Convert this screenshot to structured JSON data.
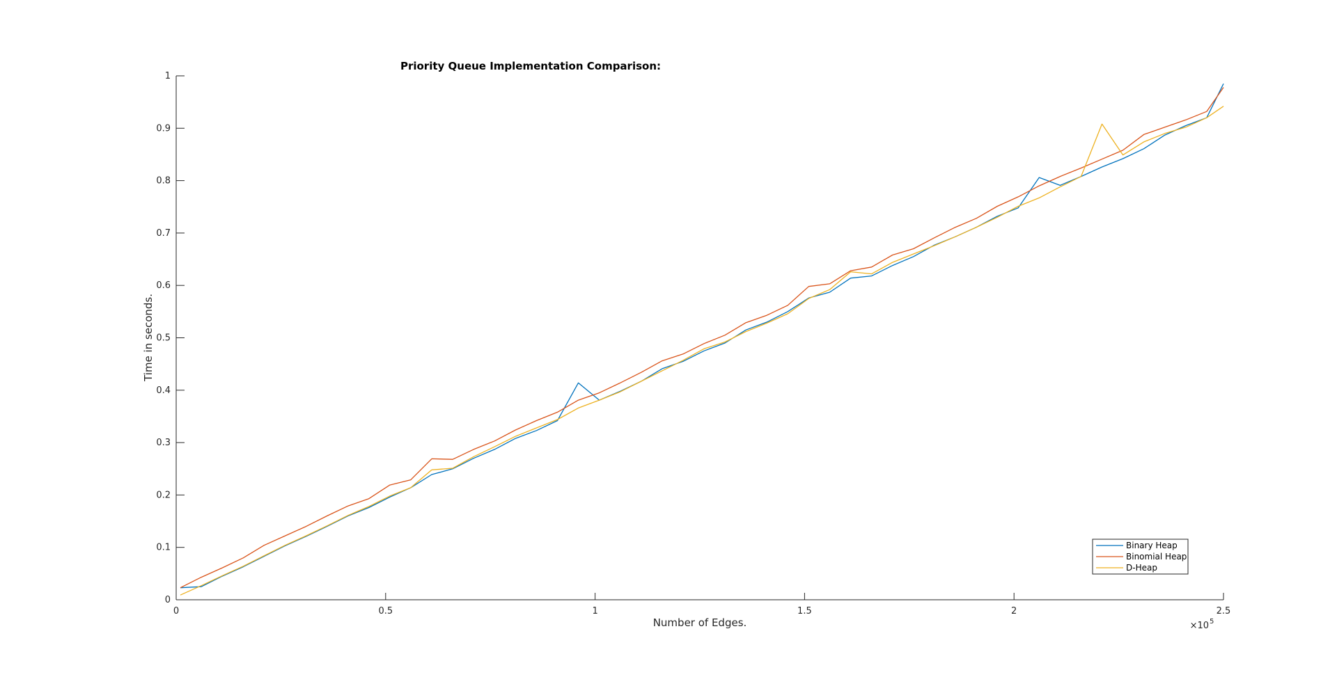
{
  "chart_data": {
    "type": "line",
    "title": "Priority Queue Implementation Comparison:",
    "xlabel": "Number of Edges.",
    "ylabel": "Time in seconds.",
    "x_exponent_label": "×10",
    "x_exponent_power": "5",
    "xlim": [
      0,
      2.5
    ],
    "ylim": [
      0,
      1
    ],
    "x_ticks": [
      "0",
      "0.5",
      "1",
      "1.5",
      "2",
      "2.5"
    ],
    "y_ticks": [
      "0",
      "0.1",
      "0.2",
      "0.3",
      "0.4",
      "0.5",
      "0.6",
      "0.7",
      "0.8",
      "0.9",
      "1"
    ],
    "grid": false,
    "legend_position": "bottom-right",
    "x": [
      0.01,
      0.06,
      0.11,
      0.16,
      0.21,
      0.26,
      0.31,
      0.36,
      0.41,
      0.46,
      0.51,
      0.56,
      0.61,
      0.66,
      0.71,
      0.76,
      0.81,
      0.86,
      0.91,
      0.96,
      1.01,
      1.06,
      1.11,
      1.16,
      1.21,
      1.26,
      1.31,
      1.36,
      1.41,
      1.46,
      1.51,
      1.56,
      1.61,
      1.66,
      1.71,
      1.76,
      1.81,
      1.86,
      1.91,
      1.96,
      2.01,
      2.06,
      2.11,
      2.16,
      2.21,
      2.26,
      2.31,
      2.36,
      2.41,
      2.46,
      2.5
    ],
    "series": [
      {
        "name": "Binary Heap",
        "color": "#0072BD",
        "values": [
          0.023,
          0.025,
          0.045,
          0.063,
          0.083,
          0.103,
          0.121,
          0.14,
          0.16,
          0.176,
          0.196,
          0.214,
          0.239,
          0.25,
          0.27,
          0.287,
          0.308,
          0.323,
          0.342,
          0.414,
          0.381,
          0.398,
          0.417,
          0.441,
          0.455,
          0.475,
          0.49,
          0.515,
          0.53,
          0.55,
          0.576,
          0.587,
          0.614,
          0.618,
          0.638,
          0.655,
          0.677,
          0.693,
          0.711,
          0.732,
          0.748,
          0.806,
          0.791,
          0.808,
          0.826,
          0.842,
          0.861,
          0.887,
          0.905,
          0.92,
          0.985
        ]
      },
      {
        "name": "Binomial Heap",
        "color": "#D95319",
        "values": [
          0.023,
          0.043,
          0.061,
          0.08,
          0.104,
          0.122,
          0.14,
          0.16,
          0.179,
          0.193,
          0.219,
          0.229,
          0.269,
          0.268,
          0.287,
          0.303,
          0.324,
          0.342,
          0.358,
          0.381,
          0.395,
          0.414,
          0.434,
          0.456,
          0.469,
          0.489,
          0.505,
          0.529,
          0.543,
          0.562,
          0.598,
          0.603,
          0.628,
          0.635,
          0.658,
          0.67,
          0.691,
          0.711,
          0.728,
          0.751,
          0.769,
          0.79,
          0.808,
          0.824,
          0.841,
          0.858,
          0.888,
          0.902,
          0.916,
          0.932,
          0.978
        ]
      },
      {
        "name": "D-Heap",
        "color": "#EDB120",
        "values": [
          0.009,
          0.027,
          0.046,
          0.064,
          0.084,
          0.104,
          0.122,
          0.141,
          0.161,
          0.178,
          0.198,
          0.214,
          0.248,
          0.251,
          0.273,
          0.292,
          0.312,
          0.328,
          0.344,
          0.366,
          0.381,
          0.397,
          0.417,
          0.437,
          0.457,
          0.479,
          0.492,
          0.512,
          0.528,
          0.546,
          0.575,
          0.592,
          0.626,
          0.622,
          0.644,
          0.66,
          0.676,
          0.693,
          0.711,
          0.73,
          0.751,
          0.767,
          0.788,
          0.808,
          0.908,
          0.849,
          0.874,
          0.89,
          0.902,
          0.92,
          0.942
        ]
      }
    ]
  }
}
